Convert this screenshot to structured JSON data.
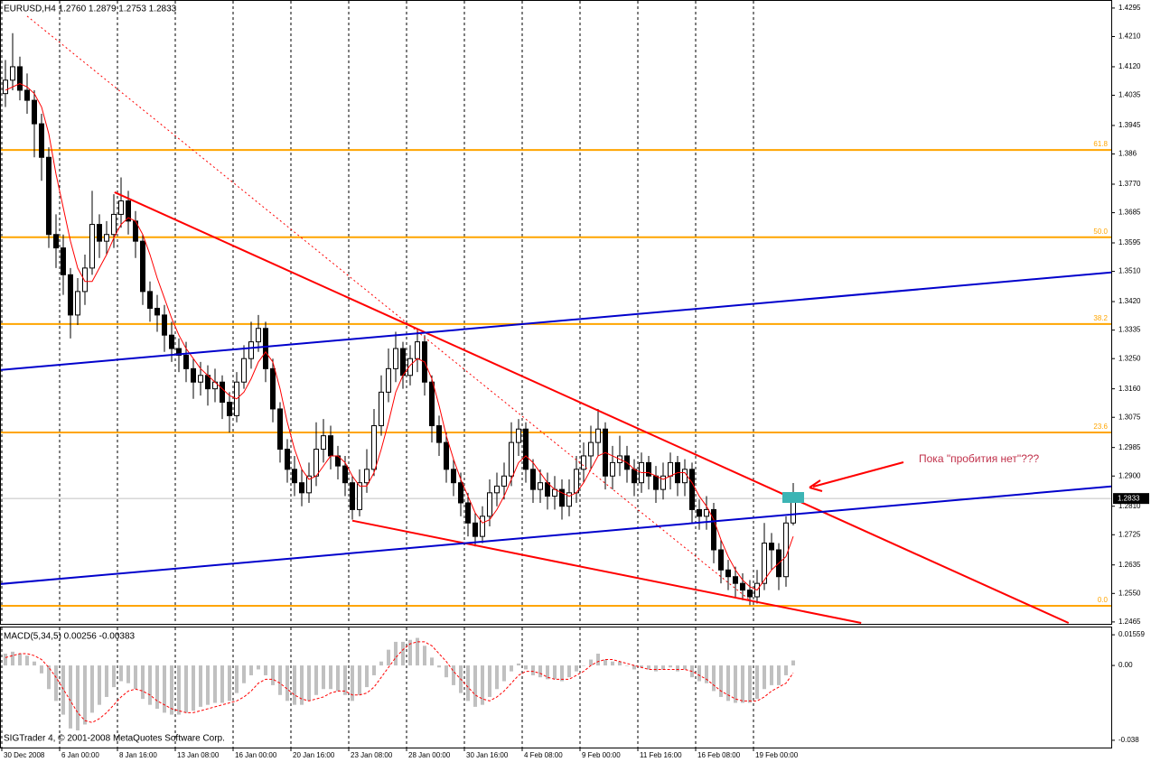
{
  "chart_data": [
    {
      "type": "candlestick",
      "title": "EURUSD,H4  1.2760 1.2879 1.2753 1.2833",
      "categories": [
        "30 Dec 2008",
        null,
        null,
        null,
        null,
        null,
        null,
        null,
        "6 Jan 00:00",
        null,
        null,
        null,
        null,
        null,
        null,
        null,
        "8 Jan 16:00",
        null,
        null,
        null,
        null,
        null,
        null,
        null,
        "13 Jan 08:00",
        null,
        null,
        null,
        null,
        null,
        null,
        null,
        "16 Jan 00:00",
        null,
        null,
        null,
        null,
        null,
        null,
        null,
        "20 Jan 16:00",
        null,
        null,
        null,
        null,
        null,
        null,
        null,
        "23 Jan 08:00",
        null,
        null,
        null,
        null,
        null,
        null,
        null,
        "28 Jan 00:00",
        null,
        null,
        null,
        null,
        null,
        null,
        null,
        "30 Jan 16:00",
        null,
        null,
        null,
        null,
        null,
        null,
        null,
        "4 Feb 08:00",
        null,
        null,
        null,
        null,
        null,
        null,
        null,
        "9 Feb 00:00",
        null,
        null,
        null,
        null,
        null,
        null,
        null,
        "11 Feb 16:00",
        null,
        null,
        null,
        null,
        null,
        null,
        null,
        "16 Feb 08:00",
        null,
        null,
        null,
        null,
        null,
        null,
        null,
        "19 Feb 00:00",
        null,
        null,
        null,
        null,
        null
      ],
      "open": [
        1.404,
        1.408,
        1.412,
        1.405,
        1.402,
        1.395,
        1.385,
        1.362,
        1.358,
        1.35,
        1.338,
        1.345,
        1.352,
        1.365,
        1.36,
        1.362,
        1.368,
        1.372,
        1.366,
        1.36,
        1.345,
        1.34,
        1.338,
        1.332,
        1.328,
        1.326,
        1.322,
        1.318,
        1.32,
        1.316,
        1.318,
        1.312,
        1.308,
        1.318,
        1.325,
        1.33,
        1.334,
        1.322,
        1.31,
        1.298,
        1.292,
        1.288,
        1.285,
        1.29,
        1.298,
        1.302,
        1.296,
        1.293,
        1.288,
        1.28,
        1.288,
        1.292,
        1.305,
        1.315,
        1.322,
        1.328,
        1.32,
        1.325,
        1.33,
        1.318,
        1.305,
        1.3,
        1.292,
        1.288,
        1.282,
        1.276,
        1.272,
        1.278,
        1.285,
        1.287,
        1.29,
        1.3,
        1.304,
        1.292,
        1.286,
        1.288,
        1.284,
        1.286,
        1.281,
        1.285,
        1.292,
        1.296,
        1.3,
        1.304,
        1.29,
        1.294,
        1.296,
        1.292,
        1.288,
        1.294,
        1.29,
        1.286,
        1.29,
        1.294,
        1.288,
        1.292,
        1.28,
        1.278,
        1.28,
        1.268,
        1.262,
        1.26,
        1.258,
        1.256,
        1.254,
        1.258,
        1.27,
        1.268,
        1.26,
        1.276
      ],
      "high": [
        1.414,
        1.422,
        1.415,
        1.41,
        1.405,
        1.398,
        1.388,
        1.368,
        1.362,
        1.352,
        1.349,
        1.356,
        1.375,
        1.368,
        1.366,
        1.374,
        1.379,
        1.375,
        1.369,
        1.362,
        1.348,
        1.344,
        1.341,
        1.336,
        1.331,
        1.33,
        1.325,
        1.324,
        1.323,
        1.322,
        1.32,
        1.315,
        1.321,
        1.329,
        1.336,
        1.338,
        1.336,
        1.325,
        1.312,
        1.301,
        1.296,
        1.292,
        1.294,
        1.306,
        1.307,
        1.305,
        1.299,
        1.296,
        1.29,
        1.292,
        1.298,
        1.31,
        1.32,
        1.328,
        1.333,
        1.33,
        1.329,
        1.334,
        1.332,
        1.32,
        1.308,
        1.303,
        1.295,
        1.291,
        1.285,
        1.279,
        1.281,
        1.289,
        1.291,
        1.294,
        1.306,
        1.307,
        1.306,
        1.295,
        1.292,
        1.291,
        1.29,
        1.289,
        1.289,
        1.296,
        1.3,
        1.305,
        1.31,
        1.306,
        1.299,
        1.302,
        1.299,
        1.295,
        1.297,
        1.296,
        1.293,
        1.294,
        1.297,
        1.296,
        1.295,
        1.294,
        1.283,
        1.284,
        1.282,
        1.271,
        1.265,
        1.263,
        1.261,
        1.259,
        1.262,
        1.276,
        1.273,
        1.27,
        1.278,
        1.2879
      ],
      "low": [
        1.4,
        1.405,
        1.402,
        1.398,
        1.385,
        1.378,
        1.358,
        1.352,
        1.344,
        1.331,
        1.335,
        1.341,
        1.35,
        1.355,
        1.356,
        1.358,
        1.364,
        1.362,
        1.355,
        1.341,
        1.336,
        1.333,
        1.327,
        1.324,
        1.321,
        1.318,
        1.313,
        1.314,
        1.311,
        1.312,
        1.307,
        1.303,
        1.306,
        1.316,
        1.322,
        1.327,
        1.318,
        1.306,
        1.294,
        1.288,
        1.284,
        1.281,
        1.282,
        1.287,
        1.294,
        1.292,
        1.289,
        1.284,
        1.277,
        1.278,
        1.285,
        1.29,
        1.302,
        1.312,
        1.318,
        1.316,
        1.317,
        1.321,
        1.314,
        1.3,
        1.296,
        1.288,
        1.284,
        1.278,
        1.272,
        1.269,
        1.27,
        1.275,
        1.281,
        1.283,
        1.287,
        1.296,
        1.288,
        1.282,
        1.282,
        1.28,
        1.28,
        1.277,
        1.278,
        1.282,
        1.288,
        1.292,
        1.296,
        1.286,
        1.286,
        1.29,
        1.288,
        1.284,
        1.285,
        1.286,
        1.282,
        1.283,
        1.286,
        1.284,
        1.284,
        1.276,
        1.274,
        1.274,
        1.264,
        1.258,
        1.256,
        1.254,
        1.253,
        1.2515,
        1.252,
        1.256,
        1.262,
        1.256,
        1.257,
        1.2753
      ],
      "close": [
        1.408,
        1.412,
        1.405,
        1.402,
        1.395,
        1.385,
        1.362,
        1.358,
        1.35,
        1.338,
        1.345,
        1.352,
        1.365,
        1.36,
        1.362,
        1.368,
        1.372,
        1.366,
        1.36,
        1.345,
        1.34,
        1.338,
        1.332,
        1.328,
        1.326,
        1.322,
        1.318,
        1.32,
        1.316,
        1.318,
        1.312,
        1.308,
        1.318,
        1.325,
        1.33,
        1.334,
        1.322,
        1.31,
        1.298,
        1.292,
        1.288,
        1.285,
        1.29,
        1.298,
        1.302,
        1.296,
        1.293,
        1.288,
        1.28,
        1.288,
        1.292,
        1.305,
        1.315,
        1.322,
        1.328,
        1.32,
        1.325,
        1.33,
        1.318,
        1.305,
        1.3,
        1.292,
        1.288,
        1.282,
        1.276,
        1.272,
        1.278,
        1.285,
        1.287,
        1.29,
        1.3,
        1.304,
        1.292,
        1.286,
        1.288,
        1.284,
        1.286,
        1.281,
        1.285,
        1.292,
        1.296,
        1.3,
        1.304,
        1.29,
        1.294,
        1.296,
        1.292,
        1.288,
        1.294,
        1.29,
        1.286,
        1.29,
        1.294,
        1.288,
        1.292,
        1.28,
        1.278,
        1.28,
        1.268,
        1.262,
        1.26,
        1.258,
        1.256,
        1.254,
        1.258,
        1.27,
        1.268,
        1.26,
        1.276,
        1.2833
      ],
      "ma": {
        "color": "#ff0000",
        "values": [
          1.405,
          1.406,
          1.407,
          1.406,
          1.404,
          1.4,
          1.392,
          1.38,
          1.37,
          1.36,
          1.352,
          1.348,
          1.348,
          1.352,
          1.356,
          1.361,
          1.365,
          1.367,
          1.366,
          1.362,
          1.356,
          1.349,
          1.343,
          1.337,
          1.332,
          1.328,
          1.325,
          1.322,
          1.32,
          1.318,
          1.316,
          1.314,
          1.313,
          1.315,
          1.319,
          1.324,
          1.327,
          1.324,
          1.316,
          1.306,
          1.298,
          1.292,
          1.289,
          1.29,
          1.293,
          1.296,
          1.296,
          1.294,
          1.29,
          1.287,
          1.287,
          1.291,
          1.298,
          1.306,
          1.315,
          1.32,
          1.323,
          1.325,
          1.324,
          1.319,
          1.311,
          1.302,
          1.295,
          1.289,
          1.284,
          1.279,
          1.276,
          1.277,
          1.28,
          1.284,
          1.289,
          1.294,
          1.296,
          1.294,
          1.291,
          1.288,
          1.286,
          1.285,
          1.284,
          1.285,
          1.288,
          1.292,
          1.296,
          1.297,
          1.296,
          1.295,
          1.294,
          1.292,
          1.291,
          1.291,
          1.29,
          1.289,
          1.29,
          1.291,
          1.291,
          1.288,
          1.284,
          1.281,
          1.277,
          1.271,
          1.266,
          1.262,
          1.259,
          1.257,
          1.256,
          1.259,
          1.262,
          1.264,
          1.266,
          1.272
        ]
      },
      "ylim": [
        1.2462,
        1.4319
      ],
      "yticks": [
        1.4295,
        {
          "value": 1.421,
          "label": "1.4210"
        },
        {
          "value": 1.412,
          "label": "1.4120"
        },
        1.4035,
        1.3945,
        1.386,
        {
          "value": 1.377,
          "label": "1.3770"
        },
        1.3685,
        1.3595,
        {
          "value": 1.351,
          "label": "1.3510"
        },
        {
          "value": 1.342,
          "label": "1.3420"
        },
        1.3335,
        {
          "value": 1.325,
          "label": "1.3250"
        },
        {
          "value": 1.316,
          "label": "1.3160"
        },
        1.3075,
        1.2985,
        {
          "value": 1.29,
          "label": "1.2900"
        },
        {
          "value": 1.281,
          "label": "1.2810"
        },
        1.2725,
        1.2635,
        {
          "value": 1.255,
          "label": "1.2550"
        },
        1.2465
      ],
      "grid": true,
      "last_price": 1.2833,
      "levels": [
        {
          "label": "61.8",
          "price": 1.3872
        },
        {
          "label": "50.0",
          "price": 1.3612
        },
        {
          "label": "38.2",
          "price": 1.3353
        },
        {
          "label": "23.6",
          "price": 1.303
        },
        {
          "label": "0.0",
          "price": 1.2513
        }
      ],
      "level_color": "#ffa500",
      "trend_lines": [
        {
          "color": "#ff0000",
          "dash": false,
          "x": [
            15.1,
            147.1
          ],
          "y": [
            1.3746,
            1.2462
          ]
        },
        {
          "color": "#ff0000",
          "dash": false,
          "x": [
            48,
            118.4
          ],
          "y": [
            1.2767,
            1.2462
          ]
        },
        {
          "color": "#ff0000",
          "dash": true,
          "x": [
            3,
            103
          ],
          "y": [
            1.4271,
            1.253
          ]
        },
        {
          "color": "#0000cc",
          "dash": false,
          "x": [
            -0.75,
            153
          ],
          "y": [
            1.3216,
            1.3507
          ]
        },
        {
          "color": "#0000cc",
          "dash": false,
          "x": [
            -0.75,
            153
          ],
          "y": [
            1.2578,
            1.2869
          ]
        }
      ],
      "annotation": "Пока \"пробития нет\"???"
    },
    {
      "type": "macd",
      "title": "MACD(5,34,5) 0.00256 -0.00383",
      "histogram": {
        "color": "#c0c0c0",
        "values": [
          0.006,
          0.007,
          0.006,
          0.005,
          0.002,
          -0.004,
          -0.012,
          -0.018,
          -0.025,
          -0.032,
          -0.033,
          -0.03,
          -0.024,
          -0.02,
          -0.016,
          -0.011,
          -0.008,
          -0.009,
          -0.012,
          -0.017,
          -0.02,
          -0.022,
          -0.024,
          -0.025,
          -0.025,
          -0.024,
          -0.023,
          -0.021,
          -0.02,
          -0.019,
          -0.019,
          -0.018,
          -0.014,
          -0.009,
          -0.005,
          -0.002,
          -0.005,
          -0.01,
          -0.015,
          -0.018,
          -0.02,
          -0.02,
          -0.018,
          -0.015,
          -0.012,
          -0.012,
          -0.013,
          -0.015,
          -0.018,
          -0.015,
          -0.011,
          -0.005,
          0.002,
          0.008,
          0.012,
          0.012,
          0.013,
          0.014,
          0.01,
          0.004,
          -0.001,
          -0.006,
          -0.01,
          -0.014,
          -0.018,
          -0.021,
          -0.02,
          -0.016,
          -0.012,
          -0.008,
          -0.003,
          0.001,
          -0.002,
          -0.005,
          -0.006,
          -0.007,
          -0.007,
          -0.008,
          -0.006,
          -0.003,
          0.0,
          0.003,
          0.006,
          0.003,
          0.002,
          0.002,
          0.0,
          -0.002,
          -0.001,
          -0.002,
          -0.003,
          -0.002,
          -0.001,
          -0.003,
          -0.002,
          -0.006,
          -0.008,
          -0.009,
          -0.013,
          -0.016,
          -0.018,
          -0.019,
          -0.019,
          -0.019,
          -0.017,
          -0.012,
          -0.01,
          -0.01,
          -0.005,
          0.00256
        ]
      },
      "signal": {
        "color": "#ff0000",
        "values": [
          0.004,
          0.005,
          0.006,
          0.006,
          0.005,
          0.003,
          -0.001,
          -0.006,
          -0.012,
          -0.018,
          -0.024,
          -0.028,
          -0.029,
          -0.027,
          -0.024,
          -0.02,
          -0.016,
          -0.013,
          -0.012,
          -0.013,
          -0.015,
          -0.018,
          -0.02,
          -0.022,
          -0.023,
          -0.024,
          -0.024,
          -0.023,
          -0.022,
          -0.021,
          -0.02,
          -0.019,
          -0.018,
          -0.016,
          -0.013,
          -0.009,
          -0.007,
          -0.007,
          -0.009,
          -0.012,
          -0.015,
          -0.017,
          -0.018,
          -0.017,
          -0.016,
          -0.014,
          -0.013,
          -0.013,
          -0.015,
          -0.015,
          -0.014,
          -0.011,
          -0.006,
          -0.001,
          0.004,
          0.008,
          0.011,
          0.012,
          0.012,
          0.01,
          0.006,
          0.002,
          -0.003,
          -0.007,
          -0.011,
          -0.015,
          -0.017,
          -0.018,
          -0.016,
          -0.013,
          -0.009,
          -0.005,
          -0.003,
          -0.003,
          -0.004,
          -0.006,
          -0.007,
          -0.007,
          -0.007,
          -0.005,
          -0.003,
          0.0,
          0.002,
          0.003,
          0.003,
          0.002,
          0.001,
          0.0,
          -0.001,
          -0.002,
          -0.002,
          -0.002,
          -0.002,
          -0.002,
          -0.002,
          -0.003,
          -0.005,
          -0.007,
          -0.01,
          -0.013,
          -0.015,
          -0.017,
          -0.018,
          -0.018,
          -0.018,
          -0.016,
          -0.013,
          -0.011,
          -0.009,
          -0.00383
        ]
      },
      "ylim": [
        -0.0417,
        0.0193
      ],
      "yticks": [
        0.01559,
        {
          "value": 0,
          "label": "0.00"
        },
        -0.038
      ],
      "footer": "SIGTrader 4, © 2001-2008 MetaQuotes Software Corp."
    }
  ]
}
